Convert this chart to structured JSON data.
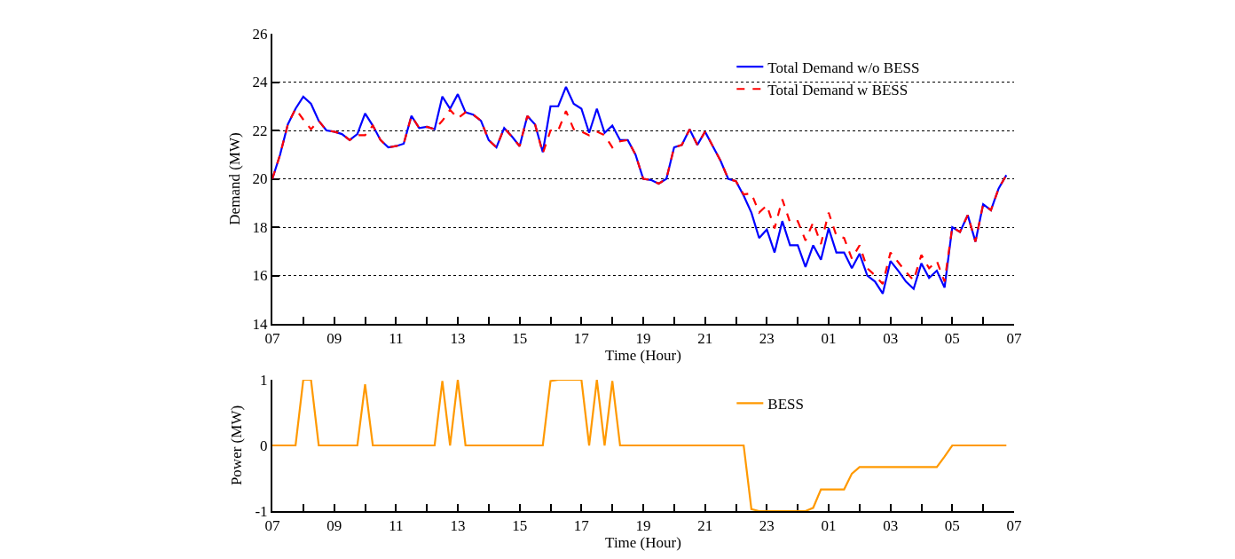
{
  "chart_data": [
    {
      "type": "line",
      "xlabel": "Time (Hour)",
      "ylabel": "Demand (MW)",
      "x": [
        "--01-01T07:00",
        "--01-01T07:15",
        "--01-01T07:30",
        "--01-01T07:45",
        "--01-01T08:00",
        "--01-01T08:15",
        "--01-01T08:30",
        "--01-01T08:45",
        "--01-01T09:00",
        "--01-01T09:15",
        "--01-01T09:30",
        "--01-01T09:45",
        "--01-01T10:00",
        "--01-01T10:15",
        "--01-01T10:30",
        "--01-01T10:45",
        "--01-01T11:00",
        "--01-01T11:15",
        "--01-01T11:30",
        "--01-01T11:45",
        "--01-01T12:00",
        "--01-01T12:15",
        "--01-01T12:30",
        "--01-01T12:45",
        "--01-01T13:00",
        "--01-01T13:15",
        "--01-01T13:30",
        "--01-01T13:45",
        "--01-01T14:00",
        "--01-01T14:15",
        "--01-01T14:30",
        "--01-01T14:45",
        "--01-01T15:00",
        "--01-01T15:15",
        "--01-01T15:30",
        "--01-01T15:45",
        "--01-01T16:00",
        "--01-01T16:15",
        "--01-01T16:30",
        "--01-01T16:45",
        "--01-01T17:00",
        "--01-01T17:15",
        "--01-01T17:30",
        "--01-01T17:45",
        "--01-01T18:00",
        "--01-01T18:15",
        "--01-01T18:30",
        "--01-01T18:45",
        "--01-01T19:00",
        "--01-01T19:15",
        "--01-01T19:30",
        "--01-01T19:45",
        "--01-01T20:00",
        "--01-01T20:15",
        "--01-01T20:30",
        "--01-01T20:45",
        "--01-01T21:00",
        "--01-01T21:15",
        "--01-01T21:30",
        "--01-01T21:45",
        "--01-01T22:00",
        "--01-01T22:15",
        "--01-01T22:30",
        "--01-01T22:45",
        "--01-01T23:00",
        "--01-01T23:15",
        "--01-01T23:30",
        "--01-01T23:45",
        "--01-02T00:00",
        "--01-02T00:15",
        "--01-02T00:30",
        "--01-02T00:45",
        "--01-02T01:00",
        "--01-02T01:15",
        "--01-02T01:30",
        "--01-02T01:45",
        "--01-02T02:00",
        "--01-02T02:15",
        "--01-02T02:30",
        "--01-02T02:45",
        "--01-02T03:00",
        "--01-02T03:15",
        "--01-02T03:30",
        "--01-02T03:45",
        "--01-02T04:00",
        "--01-02T04:15",
        "--01-02T04:30",
        "--01-02T04:45",
        "--01-02T05:00",
        "--01-02T05:15",
        "--01-02T05:30",
        "--01-02T05:45",
        "--01-02T06:00",
        "--01-02T06:15",
        "--01-02T06:30",
        "--01-02T06:45"
      ],
      "series": [
        {
          "name": "Total Demand w/o BESS",
          "color": "#0000ff",
          "line_style": "solid",
          "values": [
            20.0,
            21.0,
            22.25,
            22.9,
            23.4,
            23.1,
            22.4,
            22.0,
            21.95,
            21.85,
            21.6,
            21.85,
            22.7,
            22.2,
            21.6,
            21.3,
            21.35,
            21.45,
            22.6,
            22.1,
            22.15,
            22.05,
            23.4,
            22.9,
            23.5,
            22.75,
            22.65,
            22.4,
            21.6,
            21.3,
            22.1,
            21.75,
            21.35,
            22.6,
            22.25,
            21.1,
            23.0,
            23.0,
            23.8,
            23.1,
            22.9,
            21.9,
            22.9,
            21.9,
            22.2,
            21.6,
            21.6,
            21.0,
            20.0,
            19.95,
            19.8,
            20.0,
            21.3,
            21.4,
            22.05,
            21.4,
            21.95,
            21.35,
            20.75,
            20.0,
            19.9,
            19.3,
            18.6,
            17.55,
            17.9,
            16.95,
            18.25,
            17.25,
            17.25,
            16.35,
            17.25,
            16.65,
            17.95,
            16.95,
            16.95,
            16.3,
            16.9,
            16.0,
            15.75,
            15.25,
            16.6,
            16.2,
            15.75,
            15.45,
            16.5,
            15.9,
            16.2,
            15.5,
            18.0,
            17.8,
            18.5,
            17.4,
            18.95,
            18.7,
            19.6,
            20.15
          ]
        },
        {
          "name": "Total Demand w BESS",
          "color": "#ff0000",
          "line_style": "dashed",
          "values": [
            20.0,
            21.0,
            22.25,
            22.9,
            22.45,
            22.05,
            22.4,
            22.0,
            21.95,
            21.85,
            21.6,
            21.8,
            21.8,
            22.2,
            21.6,
            21.3,
            21.35,
            21.45,
            22.6,
            22.1,
            22.15,
            22.05,
            22.4,
            22.85,
            22.5,
            22.75,
            22.65,
            22.4,
            21.6,
            21.3,
            22.1,
            21.75,
            21.35,
            22.6,
            22.25,
            21.05,
            22.0,
            22.0,
            22.8,
            22.05,
            21.95,
            21.8,
            21.95,
            21.8,
            21.3,
            21.55,
            21.6,
            21.0,
            20.0,
            19.95,
            19.8,
            20.0,
            21.3,
            21.4,
            22.05,
            21.4,
            21.95,
            21.35,
            20.75,
            20.0,
            19.9,
            19.35,
            19.4,
            18.6,
            18.9,
            17.95,
            19.15,
            18.2,
            18.25,
            17.45,
            18.2,
            17.3,
            18.6,
            17.65,
            17.55,
            16.7,
            17.25,
            16.3,
            16.0,
            15.65,
            16.95,
            16.55,
            16.15,
            15.8,
            16.85,
            16.3,
            16.6,
            15.75,
            18.0,
            17.8,
            18.5,
            17.4,
            18.95,
            18.7,
            19.6,
            20.15
          ]
        }
      ],
      "xlim": [
        "--01-01T07:00",
        "--01-02T07:00"
      ],
      "xticks": [
        {
          "value": "--01-01T07:00",
          "label": "07"
        },
        {
          "value": "--01-01T08:00",
          "label": null
        },
        {
          "value": "--01-01T09:00",
          "label": "09"
        },
        {
          "value": "--01-01T10:00",
          "label": null
        },
        {
          "value": "--01-01T11:00",
          "label": "11"
        },
        {
          "value": "--01-01T12:00",
          "label": null
        },
        {
          "value": "--01-01T13:00",
          "label": "13"
        },
        {
          "value": "--01-01T14:00",
          "label": null
        },
        {
          "value": "--01-01T15:00",
          "label": "15"
        },
        {
          "value": "--01-01T16:00",
          "label": null
        },
        {
          "value": "--01-01T17:00",
          "label": "17"
        },
        {
          "value": "--01-01T18:00",
          "label": null
        },
        {
          "value": "--01-01T19:00",
          "label": "19"
        },
        {
          "value": "--01-01T20:00",
          "label": null
        },
        {
          "value": "--01-01T21:00",
          "label": "21"
        },
        {
          "value": "--01-01T22:00",
          "label": null
        },
        {
          "value": "--01-01T23:00",
          "label": "23"
        },
        {
          "value": "--01-02T00:00",
          "label": null
        },
        {
          "value": "--01-02T01:00",
          "label": "01"
        },
        {
          "value": "--01-02T02:00",
          "label": null
        },
        {
          "value": "--01-02T03:00",
          "label": "03"
        },
        {
          "value": "--01-02T04:00",
          "label": null
        },
        {
          "value": "--01-02T05:00",
          "label": "05"
        },
        {
          "value": "--01-02T06:00",
          "label": null
        },
        {
          "value": "--01-02T07:00",
          "label": "07"
        }
      ],
      "ylim": [
        14,
        26
      ],
      "yticks": [
        14,
        16,
        18,
        20,
        22,
        24,
        26
      ],
      "grid": "y",
      "legend": "top right",
      "marker": "none"
    },
    {
      "type": "line",
      "xlabel": "Time (Hour)",
      "ylabel": "Power (MW)",
      "x": [
        "--01-01T07:00",
        "--01-01T07:15",
        "--01-01T07:30",
        "--01-01T07:45",
        "--01-01T08:00",
        "--01-01T08:15",
        "--01-01T08:30",
        "--01-01T08:45",
        "--01-01T09:00",
        "--01-01T09:15",
        "--01-01T09:30",
        "--01-01T09:45",
        "--01-01T10:00",
        "--01-01T10:15",
        "--01-01T10:30",
        "--01-01T10:45",
        "--01-01T11:00",
        "--01-01T11:15",
        "--01-01T11:30",
        "--01-01T11:45",
        "--01-01T12:00",
        "--01-01T12:15",
        "--01-01T12:30",
        "--01-01T12:45",
        "--01-01T13:00",
        "--01-01T13:15",
        "--01-01T13:30",
        "--01-01T13:45",
        "--01-01T14:00",
        "--01-01T14:15",
        "--01-01T14:30",
        "--01-01T14:45",
        "--01-01T15:00",
        "--01-01T15:15",
        "--01-01T15:30",
        "--01-01T15:45",
        "--01-01T16:00",
        "--01-01T16:15",
        "--01-01T16:30",
        "--01-01T16:45",
        "--01-01T17:00",
        "--01-01T17:15",
        "--01-01T17:30",
        "--01-01T17:45",
        "--01-01T18:00",
        "--01-01T18:15",
        "--01-01T18:30",
        "--01-01T18:45",
        "--01-01T19:00",
        "--01-01T19:15",
        "--01-01T19:30",
        "--01-01T19:45",
        "--01-01T20:00",
        "--01-01T20:15",
        "--01-01T20:30",
        "--01-01T20:45",
        "--01-01T21:00",
        "--01-01T21:15",
        "--01-01T21:30",
        "--01-01T21:45",
        "--01-01T22:00",
        "--01-01T22:15",
        "--01-01T22:30",
        "--01-01T22:45",
        "--01-01T23:00",
        "--01-01T23:15",
        "--01-01T23:30",
        "--01-01T23:45",
        "--01-02T00:00",
        "--01-02T00:15",
        "--01-02T00:30",
        "--01-02T00:45",
        "--01-02T01:00",
        "--01-02T01:15",
        "--01-02T01:30",
        "--01-02T01:45",
        "--01-02T02:00",
        "--01-02T02:15",
        "--01-02T02:30",
        "--01-02T02:45",
        "--01-02T03:00",
        "--01-02T03:15",
        "--01-02T03:30",
        "--01-02T03:45",
        "--01-02T04:00",
        "--01-02T04:15",
        "--01-02T04:30",
        "--01-02T04:45",
        "--01-02T05:00",
        "--01-02T05:15",
        "--01-02T05:30",
        "--01-02T05:45",
        "--01-02T06:00",
        "--01-02T06:15",
        "--01-02T06:30",
        "--01-02T06:45"
      ],
      "series": [
        {
          "name": "BESS",
          "color": "#ff9900",
          "line_style": "solid",
          "values": [
            0,
            0,
            0,
            0,
            1,
            1,
            0,
            0,
            0,
            0,
            0,
            0,
            0.93,
            0,
            0,
            0,
            0,
            0,
            0,
            0,
            0,
            0,
            0.98,
            0,
            1,
            0,
            0,
            0,
            0,
            0,
            0,
            0,
            0,
            0,
            0,
            0,
            0.98,
            1,
            1,
            1,
            1,
            0,
            1,
            0,
            0.98,
            0,
            0,
            0,
            0,
            0,
            0,
            0,
            0,
            0,
            0,
            0,
            0,
            0,
            0,
            0,
            0,
            0,
            -0.97,
            -1,
            -1,
            -1,
            -1,
            -1,
            -1,
            -1,
            -0.95,
            -0.67,
            -0.67,
            -0.67,
            -0.67,
            -0.43,
            -0.33,
            -0.33,
            -0.33,
            -0.33,
            -0.33,
            -0.33,
            -0.33,
            -0.33,
            -0.33,
            -0.33,
            -0.33,
            -0.17,
            0,
            0,
            0,
            0,
            0,
            0,
            0,
            0
          ]
        }
      ],
      "xlim": [
        "--01-01T07:00",
        "--01-02T07:00"
      ],
      "xticks": [
        {
          "value": "--01-01T07:00",
          "label": "07"
        },
        {
          "value": "--01-01T08:00",
          "label": null
        },
        {
          "value": "--01-01T09:00",
          "label": "09"
        },
        {
          "value": "--01-01T10:00",
          "label": null
        },
        {
          "value": "--01-01T11:00",
          "label": "11"
        },
        {
          "value": "--01-01T12:00",
          "label": null
        },
        {
          "value": "--01-01T13:00",
          "label": "13"
        },
        {
          "value": "--01-01T14:00",
          "label": null
        },
        {
          "value": "--01-01T15:00",
          "label": "15"
        },
        {
          "value": "--01-01T16:00",
          "label": null
        },
        {
          "value": "--01-01T17:00",
          "label": "17"
        },
        {
          "value": "--01-01T18:00",
          "label": null
        },
        {
          "value": "--01-01T19:00",
          "label": "19"
        },
        {
          "value": "--01-01T20:00",
          "label": null
        },
        {
          "value": "--01-01T21:00",
          "label": "21"
        },
        {
          "value": "--01-01T22:00",
          "label": null
        },
        {
          "value": "--01-01T23:00",
          "label": "23"
        },
        {
          "value": "--01-02T00:00",
          "label": null
        },
        {
          "value": "--01-02T01:00",
          "label": "01"
        },
        {
          "value": "--01-02T02:00",
          "label": null
        },
        {
          "value": "--01-02T03:00",
          "label": "03"
        },
        {
          "value": "--01-02T04:00",
          "label": null
        },
        {
          "value": "--01-02T05:00",
          "label": "05"
        },
        {
          "value": "--01-02T06:00",
          "label": null
        },
        {
          "value": "--01-02T07:00",
          "label": "07"
        }
      ],
      "ylim": [
        -1,
        1
      ],
      "yticks": [
        -1,
        0,
        1
      ],
      "grid": false,
      "legend": "top right",
      "marker": "none"
    }
  ]
}
